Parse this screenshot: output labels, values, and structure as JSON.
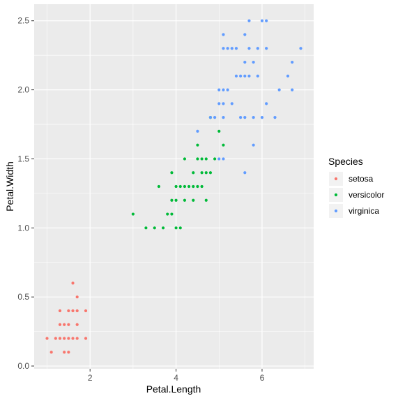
{
  "chart_data": {
    "type": "scatter",
    "xlabel": "Petal.Length",
    "ylabel": "Petal.Width",
    "xlim": [
      0.7,
      7.2
    ],
    "ylim": [
      -0.02,
      2.62
    ],
    "x_ticks": [
      2,
      4,
      6
    ],
    "y_ticks": [
      0.0,
      0.5,
      1.0,
      1.5,
      2.0,
      2.5
    ],
    "x_tick_labels": [
      "2",
      "4",
      "6"
    ],
    "y_tick_labels": [
      "0.0",
      "0.5",
      "1.0",
      "1.5",
      "2.0",
      "2.5"
    ],
    "grid": true,
    "legend": {
      "title": "Species",
      "placement": "right"
    },
    "colors": {
      "panel_background": "#EBEBEB",
      "grid": "#FFFFFF",
      "text": "#4D4D4D",
      "label": "#000000"
    },
    "series": [
      {
        "name": "setosa",
        "color": "#F8766D",
        "points": [
          [
            1.0,
            0.2
          ],
          [
            1.1,
            0.1
          ],
          [
            1.2,
            0.2
          ],
          [
            1.3,
            0.2
          ],
          [
            1.3,
            0.3
          ],
          [
            1.3,
            0.4
          ],
          [
            1.4,
            0.1
          ],
          [
            1.4,
            0.2
          ],
          [
            1.4,
            0.3
          ],
          [
            1.5,
            0.1
          ],
          [
            1.5,
            0.2
          ],
          [
            1.5,
            0.3
          ],
          [
            1.5,
            0.4
          ],
          [
            1.6,
            0.2
          ],
          [
            1.6,
            0.4
          ],
          [
            1.6,
            0.6
          ],
          [
            1.7,
            0.2
          ],
          [
            1.7,
            0.3
          ],
          [
            1.7,
            0.4
          ],
          [
            1.7,
            0.5
          ],
          [
            1.9,
            0.2
          ],
          [
            1.9,
            0.4
          ]
        ]
      },
      {
        "name": "versicolor",
        "color": "#00BA38",
        "points": [
          [
            3.0,
            1.1
          ],
          [
            3.3,
            1.0
          ],
          [
            3.5,
            1.0
          ],
          [
            3.6,
            1.3
          ],
          [
            3.7,
            1.0
          ],
          [
            3.8,
            1.1
          ],
          [
            3.9,
            1.1
          ],
          [
            3.9,
            1.2
          ],
          [
            3.9,
            1.4
          ],
          [
            4.0,
            1.0
          ],
          [
            4.0,
            1.2
          ],
          [
            4.0,
            1.3
          ],
          [
            4.1,
            1.0
          ],
          [
            4.1,
            1.3
          ],
          [
            4.2,
            1.2
          ],
          [
            4.2,
            1.3
          ],
          [
            4.2,
            1.5
          ],
          [
            4.3,
            1.3
          ],
          [
            4.4,
            1.2
          ],
          [
            4.4,
            1.3
          ],
          [
            4.4,
            1.4
          ],
          [
            4.5,
            1.3
          ],
          [
            4.5,
            1.5
          ],
          [
            4.5,
            1.6
          ],
          [
            4.6,
            1.3
          ],
          [
            4.6,
            1.4
          ],
          [
            4.6,
            1.5
          ],
          [
            4.7,
            1.2
          ],
          [
            4.7,
            1.4
          ],
          [
            4.7,
            1.5
          ],
          [
            4.8,
            1.4
          ],
          [
            4.8,
            1.8
          ],
          [
            4.9,
            1.5
          ],
          [
            5.0,
            1.7
          ],
          [
            5.1,
            1.6
          ]
        ]
      },
      {
        "name": "virginica",
        "color": "#619CFF",
        "points": [
          [
            4.5,
            1.7
          ],
          [
            4.8,
            1.8
          ],
          [
            4.9,
            1.8
          ],
          [
            5.0,
            1.5
          ],
          [
            5.0,
            1.9
          ],
          [
            5.0,
            2.0
          ],
          [
            5.1,
            1.5
          ],
          [
            5.1,
            1.8
          ],
          [
            5.1,
            1.9
          ],
          [
            5.1,
            2.0
          ],
          [
            5.1,
            2.3
          ],
          [
            5.1,
            2.4
          ],
          [
            5.2,
            2.0
          ],
          [
            5.2,
            2.3
          ],
          [
            5.3,
            1.9
          ],
          [
            5.3,
            2.3
          ],
          [
            5.4,
            2.1
          ],
          [
            5.4,
            2.3
          ],
          [
            5.5,
            1.8
          ],
          [
            5.5,
            2.1
          ],
          [
            5.6,
            1.4
          ],
          [
            5.6,
            1.8
          ],
          [
            5.6,
            2.1
          ],
          [
            5.6,
            2.2
          ],
          [
            5.6,
            2.4
          ],
          [
            5.7,
            2.1
          ],
          [
            5.7,
            2.3
          ],
          [
            5.7,
            2.5
          ],
          [
            5.8,
            1.6
          ],
          [
            5.8,
            1.8
          ],
          [
            5.8,
            2.2
          ],
          [
            5.9,
            2.1
          ],
          [
            5.9,
            2.3
          ],
          [
            6.0,
            1.8
          ],
          [
            6.0,
            2.5
          ],
          [
            6.1,
            1.9
          ],
          [
            6.1,
            2.3
          ],
          [
            6.1,
            2.5
          ],
          [
            6.3,
            1.8
          ],
          [
            6.4,
            2.0
          ],
          [
            6.6,
            2.1
          ],
          [
            6.7,
            2.0
          ],
          [
            6.7,
            2.2
          ],
          [
            6.9,
            2.3
          ]
        ]
      }
    ]
  }
}
